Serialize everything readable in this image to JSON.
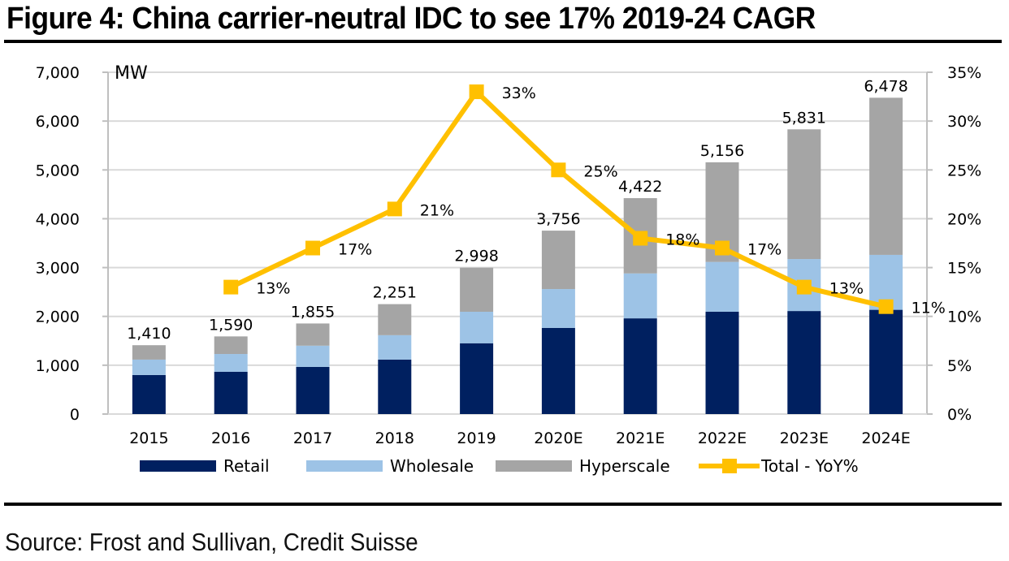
{
  "figure": {
    "title": "Figure 4: China carrier-neutral IDC to see 17% 2019-24 CAGR",
    "source": "Source: Frost and Sullivan, Credit Suisse"
  },
  "colors": {
    "retail": "#002060",
    "wholesale": "#9DC3E6",
    "hyperscale": "#A5A5A5",
    "yoy": "#FFC000",
    "grid": "#D9D9D9",
    "axis": "#BFBFBF"
  },
  "chart_data": {
    "type": "bar",
    "stacked": true,
    "title": "Figure 4: China carrier-neutral IDC to see 17% 2019-24 CAGR",
    "ylabel": "MW",
    "y2label": "",
    "xlabel": "",
    "categories": [
      "2015",
      "2016",
      "2017",
      "2018",
      "2019",
      "2020E",
      "2021E",
      "2022E",
      "2023E",
      "2024E"
    ],
    "series": [
      {
        "name": "Retail",
        "type": "bar",
        "axis": "left",
        "values": [
          800,
          865,
          965,
          1115,
          1450,
          1765,
          1960,
          2095,
          2110,
          2135
        ]
      },
      {
        "name": "Wholesale",
        "type": "bar",
        "axis": "left",
        "values": [
          315,
          365,
          435,
          500,
          645,
          795,
          920,
          1020,
          1065,
          1125
        ]
      },
      {
        "name": "Hyperscale",
        "type": "bar",
        "axis": "left",
        "values": [
          295,
          360,
          455,
          636,
          903,
          1196,
          1542,
          2041,
          2656,
          3218
        ]
      },
      {
        "name": "Total - YoY%",
        "type": "line",
        "axis": "right",
        "values": [
          null,
          13,
          17,
          21,
          33,
          25,
          18,
          17,
          13,
          11
        ]
      }
    ],
    "totals": [
      1410,
      1590,
      1855,
      2251,
      2998,
      3756,
      4422,
      5156,
      5831,
      6478
    ],
    "total_labels": [
      "1,410",
      "1,590",
      "1,855",
      "2,251",
      "2,998",
      "3,756",
      "4,422",
      "5,156",
      "5,831",
      "6,478"
    ],
    "yoy_labels": [
      "",
      "13%",
      "17%",
      "21%",
      "33%",
      "25%",
      "18%",
      "17%",
      "13%",
      "11%"
    ],
    "ylim": [
      0,
      7000
    ],
    "y2lim": [
      0,
      35
    ],
    "yticks": [
      0,
      1000,
      2000,
      3000,
      4000,
      5000,
      6000,
      7000
    ],
    "ytick_labels": [
      "0",
      "1,000",
      "2,000",
      "3,000",
      "4,000",
      "5,000",
      "6,000",
      "7,000"
    ],
    "y2ticks": [
      0,
      5,
      10,
      15,
      20,
      25,
      30,
      35
    ],
    "y2tick_labels": [
      "0%",
      "5%",
      "10%",
      "15%",
      "20%",
      "25%",
      "30%",
      "35%"
    ],
    "grid": true,
    "legend": {
      "position": "bottom",
      "entries": [
        "Retail",
        "Wholesale",
        "Hyperscale",
        "Total - YoY%"
      ]
    }
  }
}
